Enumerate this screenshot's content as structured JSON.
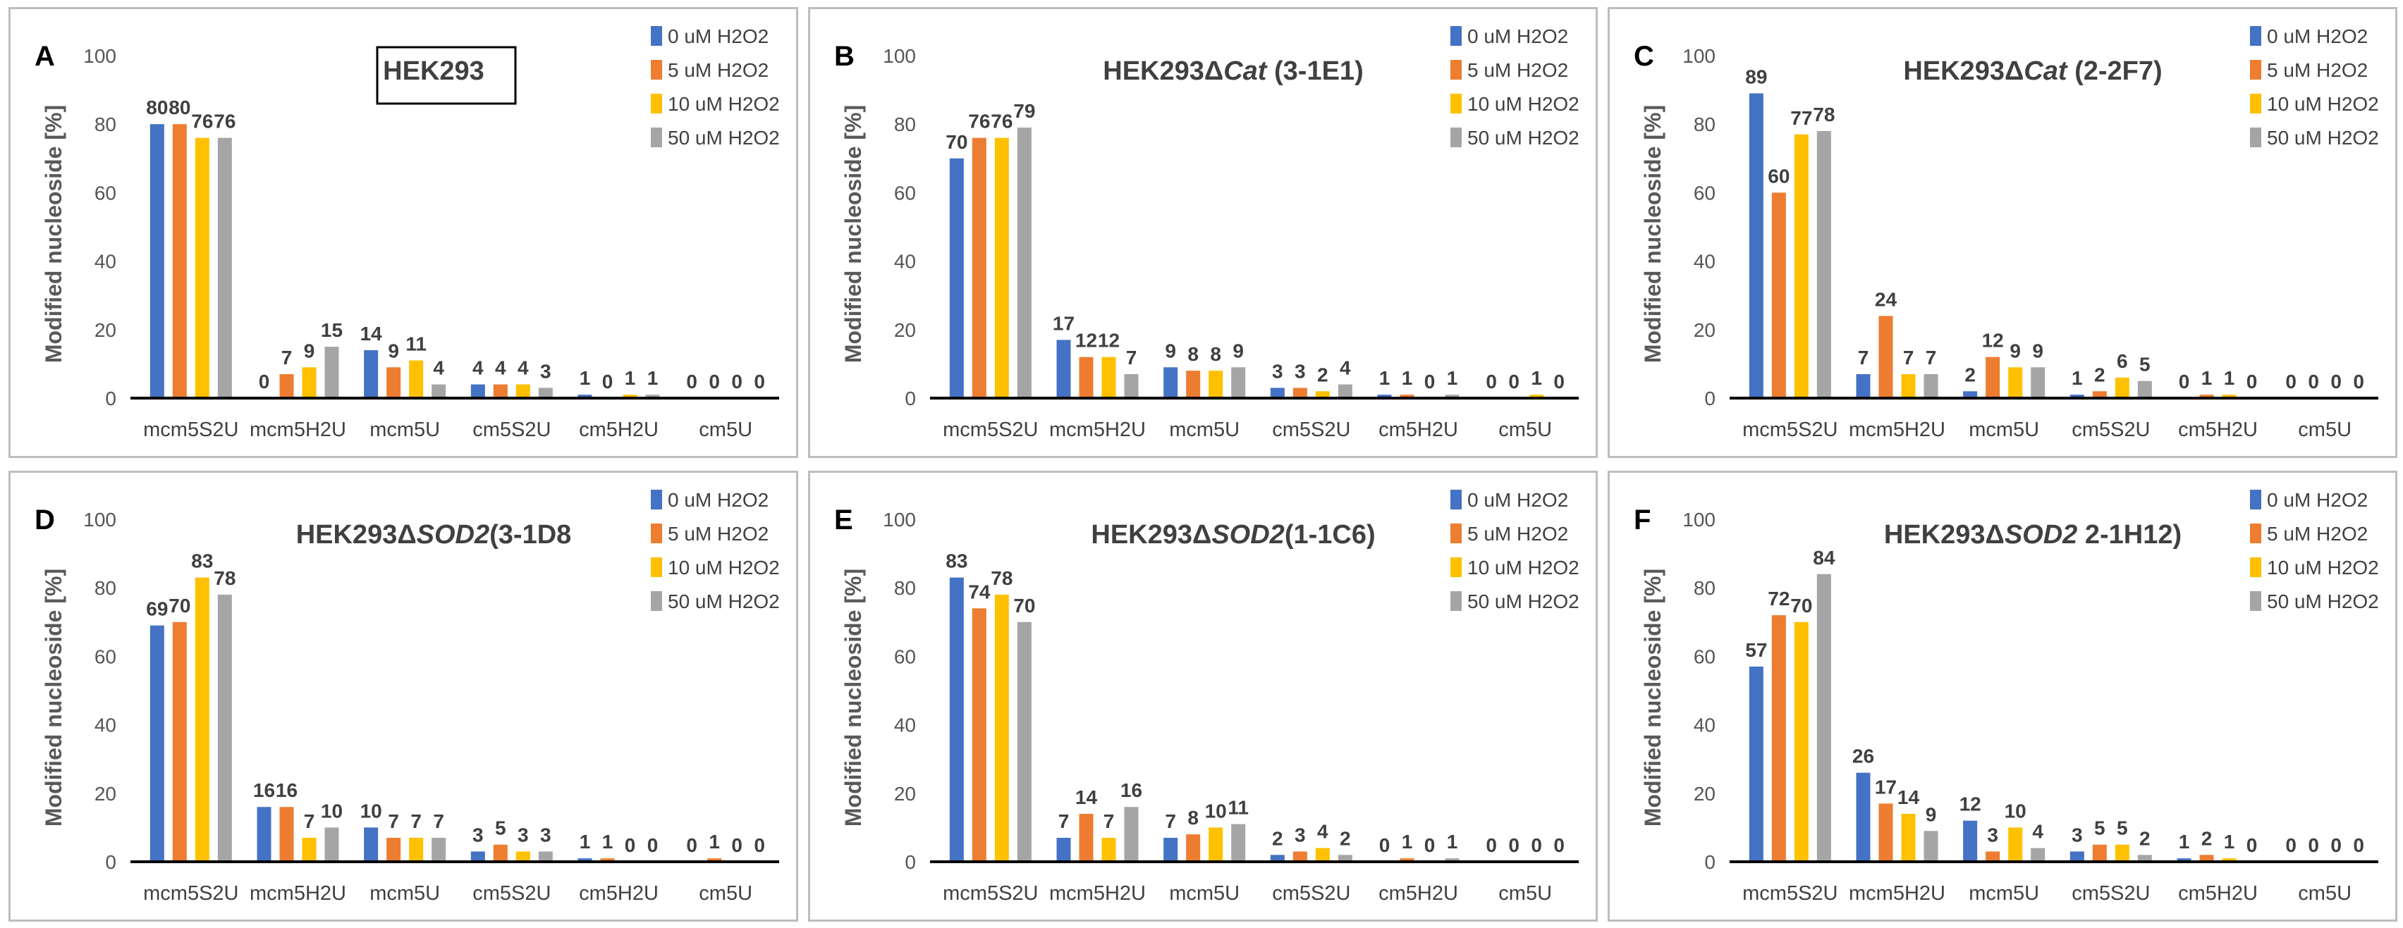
{
  "chart_data": [
    {
      "type": "bar",
      "panel_label": "A",
      "title": {
        "prefix": "HEK293",
        "italic": "",
        "suffix": ""
      },
      "boxed_title": true,
      "categories": [
        "mcm5S2U",
        "mcm5H2U",
        "mcm5U",
        "cm5S2U",
        "cm5H2U",
        "cm5U"
      ],
      "ylabel": "Modified nucleoside [%]",
      "ylim": [
        0,
        100
      ],
      "yticks": [
        0,
        20,
        40,
        60,
        80,
        100
      ],
      "legend_placement": "top-right",
      "series": [
        {
          "name": "0 uM H2O2",
          "color": "#4472c4",
          "values": [
            80,
            0,
            14,
            4,
            1,
            0
          ]
        },
        {
          "name": "5 uM H2O2",
          "color": "#ed7d31",
          "values": [
            80,
            7,
            9,
            4,
            0,
            0
          ]
        },
        {
          "name": "10 uM H2O2",
          "color": "#ffc000",
          "values": [
            76,
            9,
            11,
            4,
            1,
            0
          ]
        },
        {
          "name": "50 uM H2O2",
          "color": "#a5a5a5",
          "values": [
            76,
            15,
            4,
            3,
            1,
            0
          ]
        }
      ]
    },
    {
      "type": "bar",
      "panel_label": "B",
      "title": {
        "prefix": "HEK293Δ",
        "italic": "Cat",
        "suffix": " (3-1E1)"
      },
      "boxed_title": false,
      "categories": [
        "mcm5S2U",
        "mcm5H2U",
        "mcm5U",
        "cm5S2U",
        "cm5H2U",
        "cm5U"
      ],
      "ylabel": "Modified nucleoside [%]",
      "ylim": [
        0,
        100
      ],
      "yticks": [
        0,
        20,
        40,
        60,
        80,
        100
      ],
      "legend_placement": "top-right",
      "series": [
        {
          "name": "0 uM H2O2",
          "color": "#4472c4",
          "values": [
            70,
            17,
            9,
            3,
            1,
            0
          ]
        },
        {
          "name": "5 uM H2O2",
          "color": "#ed7d31",
          "values": [
            76,
            12,
            8,
            3,
            1,
            0
          ]
        },
        {
          "name": "10 uM H2O2",
          "color": "#ffc000",
          "values": [
            76,
            12,
            8,
            2,
            0,
            1
          ]
        },
        {
          "name": "50 uM H2O2",
          "color": "#a5a5a5",
          "values": [
            79,
            7,
            9,
            4,
            1,
            0
          ]
        }
      ]
    },
    {
      "type": "bar",
      "panel_label": "C",
      "title": {
        "prefix": "HEK293Δ",
        "italic": "Cat",
        "suffix": " (2-2F7)"
      },
      "boxed_title": false,
      "categories": [
        "mcm5S2U",
        "mcm5H2U",
        "mcm5U",
        "cm5S2U",
        "cm5H2U",
        "cm5U"
      ],
      "ylabel": "Modified nucleoside [%]",
      "ylim": [
        0,
        100
      ],
      "yticks": [
        0,
        20,
        40,
        60,
        80,
        100
      ],
      "legend_placement": "top-right",
      "series": [
        {
          "name": "0 uM H2O2",
          "color": "#4472c4",
          "values": [
            89,
            7,
            2,
            1,
            0,
            0
          ]
        },
        {
          "name": "5 uM H2O2",
          "color": "#ed7d31",
          "values": [
            60,
            24,
            12,
            2,
            1,
            0
          ]
        },
        {
          "name": "10 uM H2O2",
          "color": "#ffc000",
          "values": [
            77,
            7,
            9,
            6,
            1,
            0
          ]
        },
        {
          "name": "50 uM H2O2",
          "color": "#a5a5a5",
          "values": [
            78,
            7,
            9,
            5,
            0,
            0
          ]
        }
      ]
    },
    {
      "type": "bar",
      "panel_label": "D",
      "title": {
        "prefix": "HEK293Δ",
        "italic": "SOD2",
        "suffix": "(3-1D8"
      },
      "boxed_title": false,
      "categories": [
        "mcm5S2U",
        "mcm5H2U",
        "mcm5U",
        "cm5S2U",
        "cm5H2U",
        "cm5U"
      ],
      "ylabel": "Modified nucleoside [%]",
      "ylim": [
        0,
        100
      ],
      "yticks": [
        0,
        20,
        40,
        60,
        80,
        100
      ],
      "legend_placement": "top-right",
      "series": [
        {
          "name": "0 uM H2O2",
          "color": "#4472c4",
          "values": [
            69,
            16,
            10,
            3,
            1,
            0
          ]
        },
        {
          "name": "5 uM H2O2",
          "color": "#ed7d31",
          "values": [
            70,
            16,
            7,
            5,
            1,
            1
          ]
        },
        {
          "name": "10 uM H2O2",
          "color": "#ffc000",
          "values": [
            83,
            7,
            7,
            3,
            0,
            0
          ]
        },
        {
          "name": "50 uM H2O2",
          "color": "#a5a5a5",
          "values": [
            78,
            10,
            7,
            3,
            0,
            0
          ]
        }
      ]
    },
    {
      "type": "bar",
      "panel_label": "E",
      "title": {
        "prefix": "HEK293Δ",
        "italic": "SOD2",
        "suffix": "(1-1C6)"
      },
      "boxed_title": false,
      "categories": [
        "mcm5S2U",
        "mcm5H2U",
        "mcm5U",
        "cm5S2U",
        "cm5H2U",
        "cm5U"
      ],
      "ylabel": "Modified nucleoside [%]",
      "ylim": [
        0,
        100
      ],
      "yticks": [
        0,
        20,
        40,
        60,
        80,
        100
      ],
      "legend_placement": "top-right",
      "series": [
        {
          "name": "0 uM H2O2",
          "color": "#4472c4",
          "values": [
            83,
            7,
            7,
            2,
            0,
            0
          ]
        },
        {
          "name": "5 uM H2O2",
          "color": "#ed7d31",
          "values": [
            74,
            14,
            8,
            3,
            1,
            0
          ]
        },
        {
          "name": "10 uM H2O2",
          "color": "#ffc000",
          "values": [
            78,
            7,
            10,
            4,
            0,
            0
          ]
        },
        {
          "name": "50 uM H2O2",
          "color": "#a5a5a5",
          "values": [
            70,
            16,
            11,
            2,
            1,
            0
          ]
        }
      ]
    },
    {
      "type": "bar",
      "panel_label": "F",
      "title": {
        "prefix": "HEK293Δ",
        "italic": "SOD2",
        "suffix": " 2-1H12)"
      },
      "boxed_title": false,
      "categories": [
        "mcm5S2U",
        "mcm5H2U",
        "mcm5U",
        "cm5S2U",
        "cm5H2U",
        "cm5U"
      ],
      "ylabel": "Modified nucleoside [%]",
      "ylim": [
        0,
        100
      ],
      "yticks": [
        0,
        20,
        40,
        60,
        80,
        100
      ],
      "legend_placement": "top-right",
      "series": [
        {
          "name": "0 uM H2O2",
          "color": "#4472c4",
          "values": [
            57,
            26,
            12,
            3,
            1,
            0
          ]
        },
        {
          "name": "5 uM H2O2",
          "color": "#ed7d31",
          "values": [
            72,
            17,
            3,
            5,
            2,
            0
          ]
        },
        {
          "name": "10 uM H2O2",
          "color": "#ffc000",
          "values": [
            70,
            14,
            10,
            5,
            1,
            0
          ]
        },
        {
          "name": "50 uM H2O2",
          "color": "#a5a5a5",
          "values": [
            84,
            9,
            4,
            2,
            0,
            0
          ]
        }
      ]
    }
  ]
}
